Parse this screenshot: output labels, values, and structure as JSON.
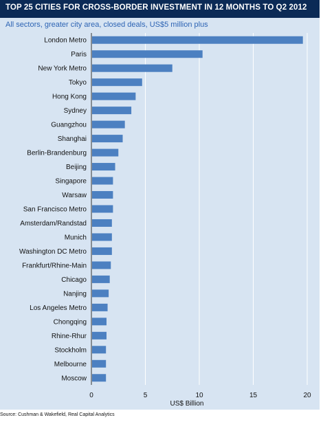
{
  "chart_data": {
    "type": "bar",
    "orientation": "horizontal",
    "title": "TOP 25 CITIES FOR CROSS-BORDER INVESTMENT IN 12 MONTHS TO Q2 2012",
    "subtitle": "All sectors, greater city area, closed deals, US$5 million plus",
    "xlabel": "US$ Billion",
    "ylabel": "",
    "xlim": [
      0,
      20
    ],
    "xticks": [
      0,
      5,
      10,
      15,
      20
    ],
    "grid": true,
    "categories": [
      "London Metro",
      "Paris",
      "New York Metro",
      "Tokyo",
      "Hong Kong",
      "Sydney",
      "Guangzhou",
      "Shanghai",
      "Berlin-Brandenburg",
      "Beijing",
      "Singapore",
      "Warsaw",
      "San Francisco Metro",
      "Amsterdam/Randstad",
      "Munich",
      "Washington DC Metro",
      "Frankfurt/Rhine-Main",
      "Chicago",
      "Nanjing",
      "Los Angeles Metro",
      "Chongqing",
      "Rhine-Rhur",
      "Stockholm",
      "Melbourne",
      "Moscow"
    ],
    "values": [
      19.6,
      10.3,
      7.5,
      4.7,
      4.1,
      3.7,
      3.1,
      2.9,
      2.5,
      2.2,
      2.0,
      2.0,
      2.0,
      1.9,
      1.9,
      1.9,
      1.8,
      1.7,
      1.6,
      1.5,
      1.4,
      1.4,
      1.35,
      1.35,
      1.35
    ],
    "bar_color": "#4c80c1"
  },
  "source": "Source: Cushman & Wakefield, Real Capital Analytics"
}
